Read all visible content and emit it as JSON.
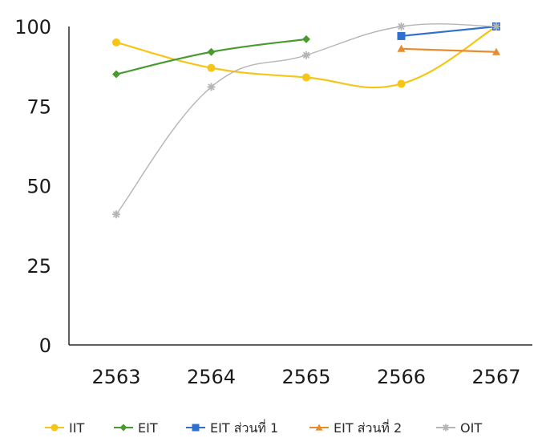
{
  "chart_data": {
    "type": "line",
    "title": "",
    "xlabel": "",
    "ylabel": "",
    "categories": [
      "2563",
      "2564",
      "2565",
      "2566",
      "2567"
    ],
    "ylim": [
      0,
      100
    ],
    "yticks": [
      0,
      25,
      50,
      75,
      100
    ],
    "grid": false,
    "legend_position": "bottom",
    "series": [
      {
        "name": "IIT",
        "color": "#f5c518",
        "marker": "circle",
        "values": [
          95,
          87,
          84,
          82,
          100
        ]
      },
      {
        "name": "EIT",
        "color": "#4a9b2f",
        "marker": "diamond",
        "values": [
          85,
          92,
          96,
          null,
          null
        ]
      },
      {
        "name": "EIT ส่วนที่ 1",
        "color": "#2f6fd0",
        "marker": "square",
        "values": [
          null,
          null,
          null,
          97,
          100
        ]
      },
      {
        "name": "EIT ส่วนที่ 2",
        "color": "#e88a2e",
        "marker": "triangle",
        "values": [
          null,
          null,
          null,
          93,
          92
        ]
      },
      {
        "name": "OIT",
        "color": "#b5b5b5",
        "marker": "star",
        "values": [
          41,
          81,
          91,
          100,
          100
        ]
      }
    ]
  }
}
